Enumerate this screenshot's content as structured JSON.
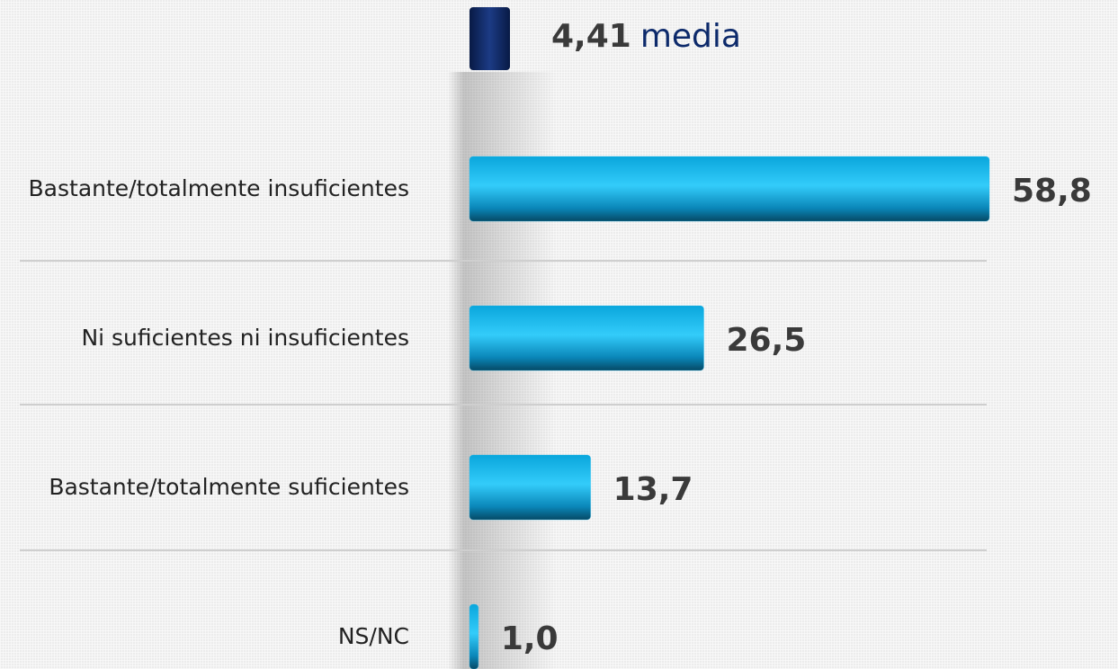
{
  "chart_data": {
    "type": "bar",
    "orientation": "horizontal",
    "categories": [
      "Bastante/totalmente insuficientes",
      "Ni suficientes ni insuficientes",
      "Bastante/totalmente suficientes",
      "NS/NC"
    ],
    "values": [
      58.8,
      26.5,
      13.7,
      1.0
    ],
    "value_labels": [
      "58,8",
      "26,5",
      "13,7",
      "1,0"
    ],
    "color": "#1ab8ee",
    "mean": 4.41,
    "mean_label": "4,41",
    "mean_text": "media",
    "mean_color": "#0d2a6b"
  }
}
